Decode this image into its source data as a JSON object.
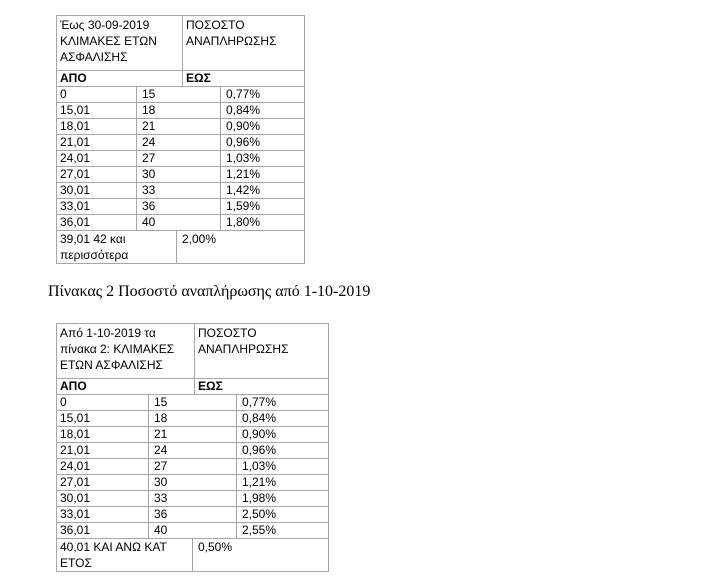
{
  "table1": {
    "header_left": [
      "Έως 30-09-2019",
      "ΚΛΙΜΑΚΕΣ ΕΤΩΝ",
      "ΑΣΦΑΛΙΣΗΣ"
    ],
    "header_right": [
      "ΠΟΣΟΣΤΟ",
      "ΑΝΑΠΛΗΡΩΣΗΣ"
    ],
    "col_from": "ΑΠΟ",
    "col_to": "ΕΩΣ",
    "rows": [
      {
        "from": "0",
        "to": "15",
        "rate": "0,77%"
      },
      {
        "from": "15,01",
        "to": "18",
        "rate": "0,84%"
      },
      {
        "from": "18,01",
        "to": "21",
        "rate": "0,90%"
      },
      {
        "from": "21,01",
        "to": "24",
        "rate": "0,96%"
      },
      {
        "from": "24,01",
        "to": "27",
        "rate": "1,03%"
      },
      {
        "from": "27,01",
        "to": "30",
        "rate": "1,21%"
      },
      {
        "from": "30,01",
        "to": "33",
        "rate": "1,42%"
      },
      {
        "from": "33,01",
        "to": "36",
        "rate": "1,59%"
      },
      {
        "from": "36,01",
        "to": "40",
        "rate": "1,80%"
      }
    ],
    "last_left": [
      "39,01 42 και",
      "περισσότερα"
    ],
    "last_rate": "2,00%"
  },
  "caption": "Πίνακας 2 Ποσοστό αναπλήρωσης από 1-10-2019",
  "table2": {
    "header_left": [
      "Από 1-10-2019  τα",
      "πίνακα 2: ΚΛΙΜΑΚΕΣ",
      "ΕΤΩΝ ΑΣΦΑΛΙΣΗΣ"
    ],
    "header_right": [
      "ΠΟΣΟΣΤΟ",
      "ΑΝΑΠΛΗΡΩΣΗΣ"
    ],
    "col_from": "ΑΠΟ",
    "col_to": "ΕΩΣ",
    "rows": [
      {
        "from": "0",
        "to": "15",
        "rate": "0,77%"
      },
      {
        "from": "15,01",
        "to": "18",
        "rate": "0,84%"
      },
      {
        "from": "18,01",
        "to": "21",
        "rate": "0,90%"
      },
      {
        "from": "21,01",
        "to": "24",
        "rate": "0,96%"
      },
      {
        "from": "24,01",
        "to": "27",
        "rate": "1,03%"
      },
      {
        "from": "27,01",
        "to": "30",
        "rate": "1,21%"
      },
      {
        "from": "30,01",
        "to": "33",
        "rate": "1,98%"
      },
      {
        "from": "33,01",
        "to": "36",
        "rate": "2,50%"
      },
      {
        "from": "36,01",
        "to": "40",
        "rate": "2,55%"
      }
    ],
    "last_left": [
      "40,01 ΚΑΙ ΑΝΩ ΚΑΤ",
      "ΕΤΟΣ"
    ],
    "last_rate": "0,50%"
  }
}
